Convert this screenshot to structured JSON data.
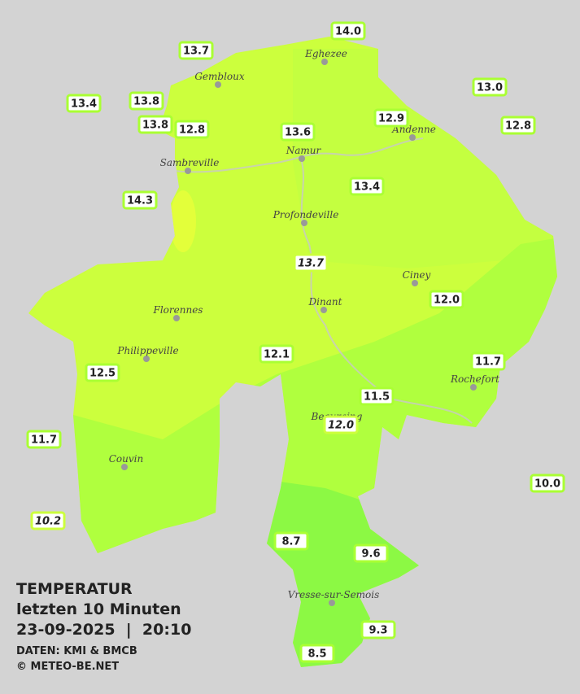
{
  "header": {
    "title": "TEMPERATUR",
    "subtitle": "letzten 10 Minuten",
    "datetime": "23-09-2025  |  20:10",
    "source": "DATEN: KMI & BMCB",
    "copyright": "© METEO-BE.NET"
  },
  "cities": [
    "Eghezee",
    "Gembloux",
    "Andenne",
    "Namur",
    "Sambreville",
    "Profondeville",
    "Ciney",
    "Dinant",
    "Florennes",
    "Philippeville",
    "Rochefort",
    "Beauraing",
    "Couvin",
    "Vresse-sur-Semois"
  ],
  "stations": [
    "14.0",
    "13.7",
    "13.4",
    "13.8",
    "13.8",
    "12.8",
    "13.6",
    "12.9",
    "13.0",
    "12.8",
    "14.3",
    "13.4",
    "13.7",
    "12.0",
    "12.1",
    "11.7",
    "12.5",
    "11.5",
    "12.0",
    "11.7",
    "10.0",
    "10.2",
    "8.7",
    "9.6",
    "9.3",
    "8.5"
  ]
}
